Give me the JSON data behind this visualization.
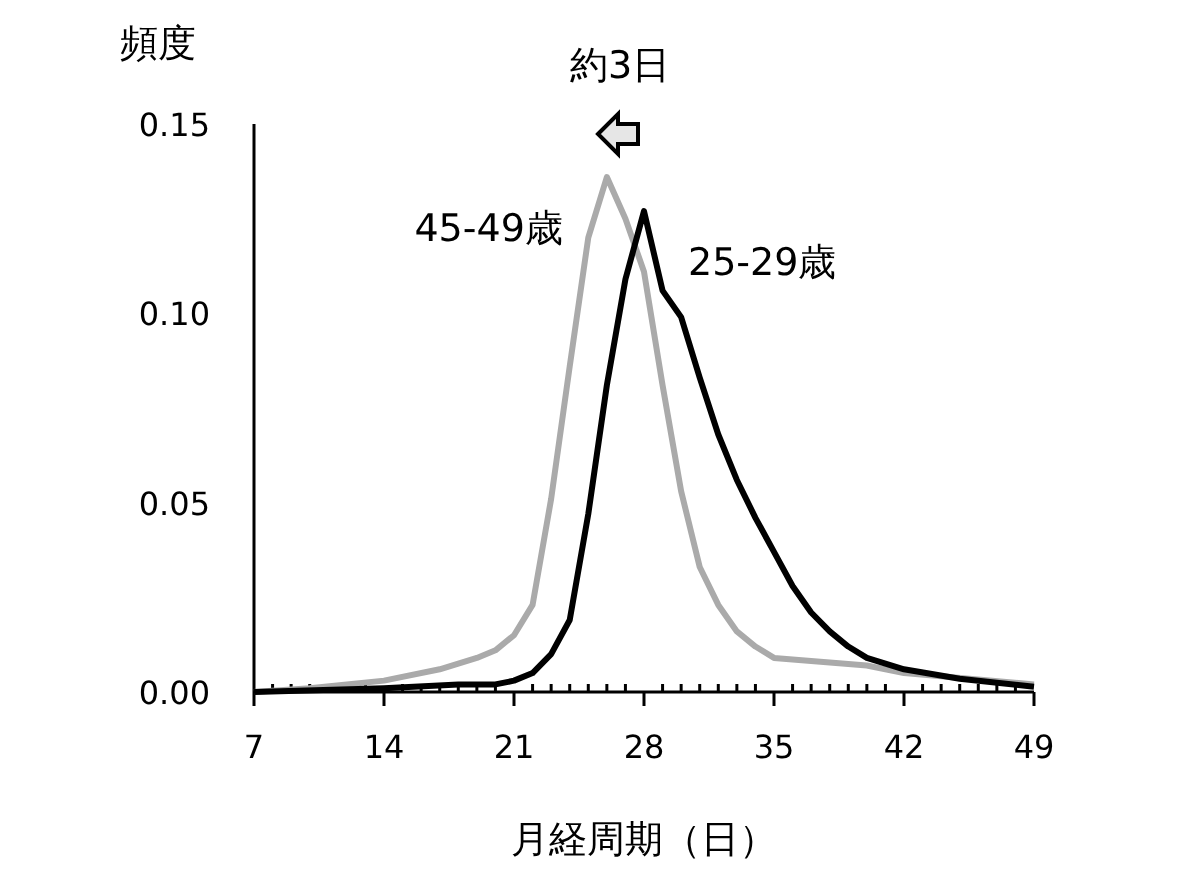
{
  "chart_data": {
    "type": "line",
    "xlabel": "月経周期（日）",
    "ylabel": "頻度",
    "annotations": [
      "約3日"
    ],
    "xlim": [
      7,
      49
    ],
    "ylim": [
      0,
      0.15
    ],
    "xticks": [
      7,
      {
        "value": 8,
        "label": null
      },
      {
        "value": 9,
        "label": null
      },
      {
        "value": 10,
        "label": null
      },
      {
        "value": 11,
        "label": null
      },
      {
        "value": 12,
        "label": null
      },
      {
        "value": 13,
        "label": null
      },
      14,
      {
        "value": 15,
        "label": null
      },
      {
        "value": 16,
        "label": null
      },
      {
        "value": 17,
        "label": null
      },
      {
        "value": 18,
        "label": null
      },
      {
        "value": 19,
        "label": null
      },
      {
        "value": 20,
        "label": null
      },
      21,
      {
        "value": 22,
        "label": null
      },
      {
        "value": 23,
        "label": null
      },
      {
        "value": 24,
        "label": null
      },
      {
        "value": 25,
        "label": null
      },
      {
        "value": 26,
        "label": null
      },
      {
        "value": 27,
        "label": null
      },
      28,
      {
        "value": 29,
        "label": null
      },
      {
        "value": 30,
        "label": null
      },
      {
        "value": 31,
        "label": null
      },
      {
        "value": 32,
        "label": null
      },
      {
        "value": 33,
        "label": null
      },
      {
        "value": 34,
        "label": null
      },
      35,
      {
        "value": 36,
        "label": null
      },
      {
        "value": 37,
        "label": null
      },
      {
        "value": 38,
        "label": null
      },
      {
        "value": 39,
        "label": null
      },
      {
        "value": 40,
        "label": null
      },
      {
        "value": 41,
        "label": null
      },
      42,
      {
        "value": 43,
        "label": null
      },
      {
        "value": 44,
        "label": null
      },
      {
        "value": 45,
        "label": null
      },
      {
        "value": 46,
        "label": null
      },
      {
        "value": 47,
        "label": null
      },
      {
        "value": 48,
        "label": null
      },
      49
    ],
    "yticks": [
      {
        "value": 0,
        "label": "0.00"
      },
      {
        "value": 0.05,
        "label": "0.05"
      },
      {
        "value": 0.1,
        "label": "0.10"
      },
      {
        "value": 0.15,
        "label": "0.15"
      }
    ],
    "grid": false,
    "legend": false,
    "marker": "none",
    "line_style": "solid",
    "series": [
      {
        "name": "45-49歳",
        "color": "#aaaaaa",
        "x": [
          7,
          10,
          14,
          17,
          19,
          20,
          21,
          22,
          23,
          24,
          25,
          26,
          27,
          28,
          29,
          30,
          31,
          32,
          33,
          34,
          35,
          40,
          42,
          49
        ],
        "values": [
          0,
          0.001,
          0.003,
          0.006,
          0.009,
          0.011,
          0.015,
          0.023,
          0.051,
          0.086,
          0.12,
          0.136,
          0.125,
          0.111,
          0.081,
          0.053,
          0.033,
          0.023,
          0.016,
          0.012,
          0.009,
          0.007,
          0.005,
          0.002
        ]
      },
      {
        "name": "25-29歳",
        "color": "#000000",
        "x": [
          7,
          14,
          18,
          20,
          21,
          22,
          23,
          24,
          25,
          26,
          27,
          28,
          29,
          30,
          31,
          32,
          33,
          34,
          35,
          36,
          37,
          38,
          39,
          40,
          42,
          45,
          49
        ],
        "values": [
          0,
          0.001,
          0.002,
          0.002,
          0.003,
          0.005,
          0.01,
          0.019,
          0.047,
          0.081,
          0.109,
          0.127,
          0.106,
          0.099,
          0.083,
          0.068,
          0.056,
          0.046,
          0.037,
          0.028,
          0.021,
          0.016,
          0.012,
          0.009,
          0.006,
          0.0035,
          0.0014
        ]
      }
    ]
  }
}
